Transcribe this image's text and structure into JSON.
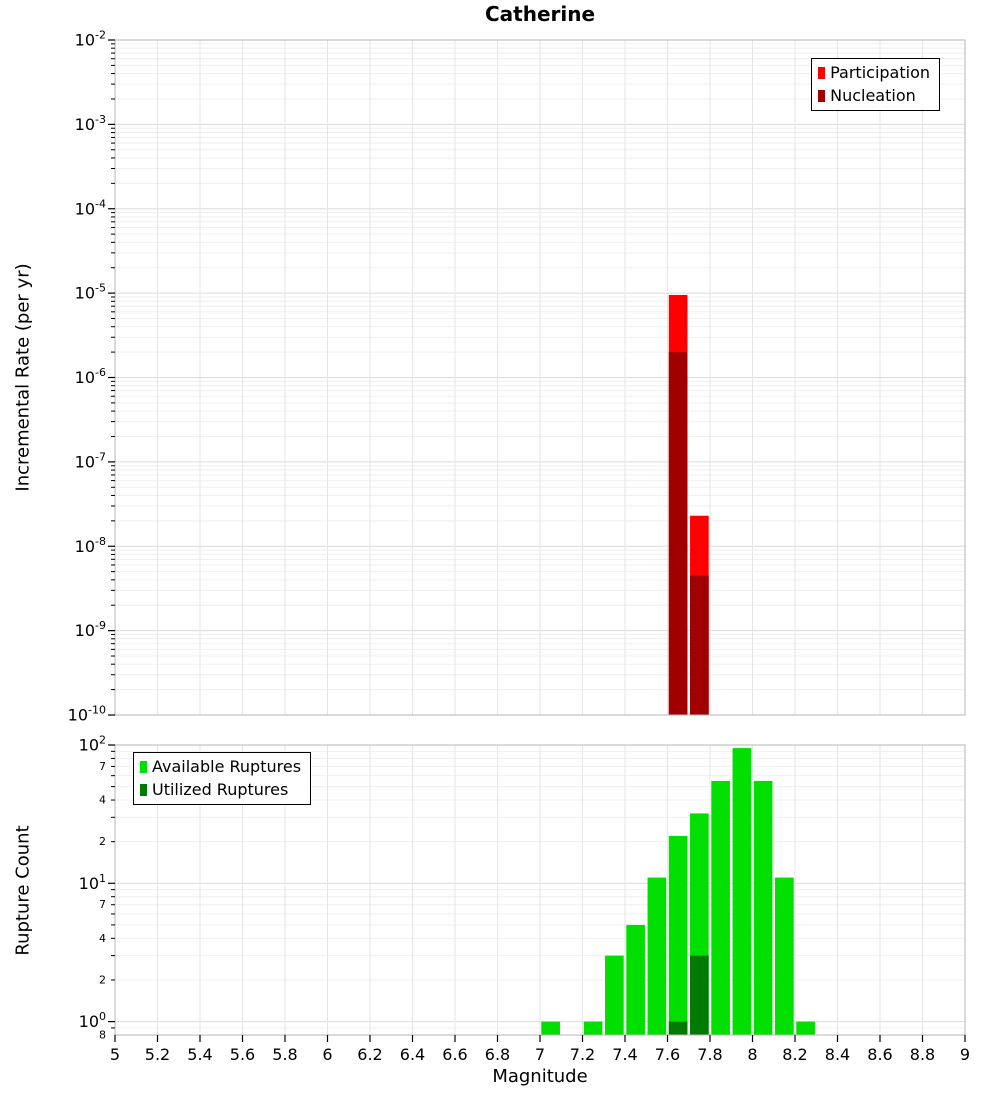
{
  "chart_data": [
    {
      "type": "bar",
      "title": "Catherine",
      "ylabel": "Incremental Rate (per yr)",
      "yscale": "log",
      "xlim": [
        5,
        9
      ],
      "ylim": [
        1e-10,
        0.01
      ],
      "grid": true,
      "legend_position": "top-right",
      "legend": [
        {
          "label": "Participation",
          "color": "#ff0000"
        },
        {
          "label": "Nucleation",
          "color": "#a00000"
        }
      ],
      "bar_width_mag": 0.1,
      "ytick_exponents": [
        -2,
        -3,
        -4,
        -5,
        -6,
        -7,
        -8,
        -9,
        -10
      ],
      "series": [
        {
          "name": "Participation",
          "color": "#ff0000",
          "bars": [
            {
              "x0": 7.6,
              "x1": 7.7,
              "value": 9.5e-06
            },
            {
              "x0": 7.7,
              "x1": 7.8,
              "value": 2.3e-08
            }
          ]
        },
        {
          "name": "Nucleation",
          "color": "#a00000",
          "bars": [
            {
              "x0": 7.6,
              "x1": 7.7,
              "value": 2e-06
            },
            {
              "x0": 7.7,
              "x1": 7.8,
              "value": 4.5e-09
            }
          ]
        }
      ]
    },
    {
      "type": "bar",
      "ylabel": "Rupture Count",
      "xlabel": "Magnitude",
      "yscale": "log",
      "xlim": [
        5,
        9
      ],
      "ylim": [
        0.8,
        100
      ],
      "grid": true,
      "legend_position": "top-left",
      "legend": [
        {
          "label": "Available Ruptures",
          "color": "#00df00"
        },
        {
          "label": "Utilized Ruptures",
          "color": "#007a00"
        }
      ],
      "xticks": [
        5,
        5.2,
        5.4,
        5.6,
        5.8,
        6,
        6.2,
        6.4,
        6.6,
        6.8,
        7,
        7.2,
        7.4,
        7.6,
        7.8,
        8,
        8.2,
        8.4,
        8.6,
        8.8,
        9
      ],
      "ytick_exponents": [
        2,
        1,
        0
      ],
      "ytick_minor_labels": [
        {
          "value": 70,
          "label": "7"
        },
        {
          "value": 40,
          "label": "4"
        },
        {
          "value": 20,
          "label": "2"
        },
        {
          "value": 7,
          "label": "7"
        },
        {
          "value": 4,
          "label": "4"
        },
        {
          "value": 2,
          "label": "2"
        },
        {
          "value": 0.8,
          "label": "8"
        }
      ],
      "bar_width_mag": 0.1,
      "series": [
        {
          "name": "Available Ruptures",
          "color": "#00df00",
          "bars": [
            {
              "x0": 7.0,
              "x1": 7.1,
              "value": 1
            },
            {
              "x0": 7.2,
              "x1": 7.3,
              "value": 1
            },
            {
              "x0": 7.3,
              "x1": 7.4,
              "value": 3
            },
            {
              "x0": 7.4,
              "x1": 7.5,
              "value": 5
            },
            {
              "x0": 7.5,
              "x1": 7.6,
              "value": 11
            },
            {
              "x0": 7.6,
              "x1": 7.7,
              "value": 22
            },
            {
              "x0": 7.7,
              "x1": 7.8,
              "value": 32
            },
            {
              "x0": 7.8,
              "x1": 7.9,
              "value": 55
            },
            {
              "x0": 7.9,
              "x1": 8.0,
              "value": 95
            },
            {
              "x0": 8.0,
              "x1": 8.1,
              "value": 55
            },
            {
              "x0": 8.1,
              "x1": 8.2,
              "value": 11
            },
            {
              "x0": 8.2,
              "x1": 8.3,
              "value": 1
            }
          ]
        },
        {
          "name": "Utilized Ruptures",
          "color": "#007a00",
          "bars": [
            {
              "x0": 7.6,
              "x1": 7.7,
              "value": 1
            },
            {
              "x0": 7.7,
              "x1": 7.8,
              "value": 3
            }
          ]
        }
      ]
    }
  ]
}
